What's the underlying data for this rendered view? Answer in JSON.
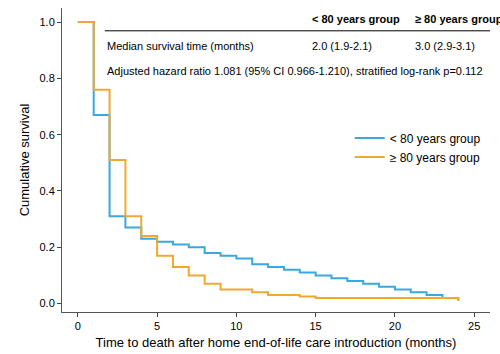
{
  "chart_data": {
    "type": "line",
    "line_style": "step",
    "xlabel": "Time to death after home end-of-life care introduction (months)",
    "ylabel": "Cumulative survival",
    "x": [
      0,
      1,
      2,
      3,
      4,
      5,
      6,
      7,
      8,
      9,
      10,
      11,
      12,
      13,
      14,
      15,
      16,
      17,
      18,
      19,
      20,
      21,
      22,
      23,
      24
    ],
    "series": [
      {
        "name": "< 80 years group",
        "color": "#3aa8e0",
        "values": [
          1.0,
          0.67,
          0.31,
          0.27,
          0.23,
          0.22,
          0.21,
          0.2,
          0.18,
          0.17,
          0.16,
          0.14,
          0.13,
          0.12,
          0.11,
          0.1,
          0.09,
          0.08,
          0.07,
          0.06,
          0.05,
          0.04,
          0.03,
          0.02,
          0.01
        ]
      },
      {
        "name": "≥ 80 years group",
        "color": "#f0a830",
        "values": [
          1.0,
          0.76,
          0.51,
          0.31,
          0.24,
          0.17,
          0.13,
          0.1,
          0.07,
          0.05,
          0.05,
          0.04,
          0.03,
          0.03,
          0.025,
          0.02,
          0.02,
          0.02,
          0.02,
          0.02,
          0.02,
          0.02,
          0.02,
          0.02,
          0.01
        ]
      }
    ],
    "xlim": [
      -1,
      26
    ],
    "ylim": [
      -0.03,
      1.05
    ],
    "xticks": [
      0,
      5,
      10,
      15,
      20,
      25
    ],
    "yticks": [
      {
        "value": 0,
        "label": "0.0"
      },
      0.2,
      0.4,
      0.6,
      0.8,
      {
        "value": 1,
        "label": "1.0"
      }
    ],
    "grid": false,
    "legend": "right",
    "table": {
      "columns": [
        "< 80 years group",
        "≥ 80 years group"
      ],
      "rows": [
        {
          "label": "Median survival time (months)",
          "values": [
            "2.0 (1.9-2.1)",
            "3.0 (2.9-3.1)"
          ]
        }
      ]
    },
    "annotations": [
      "Adjusted hazard ratio 1.081 (95% CI 0.966-1.210), stratified log-rank p=0.112"
    ]
  }
}
